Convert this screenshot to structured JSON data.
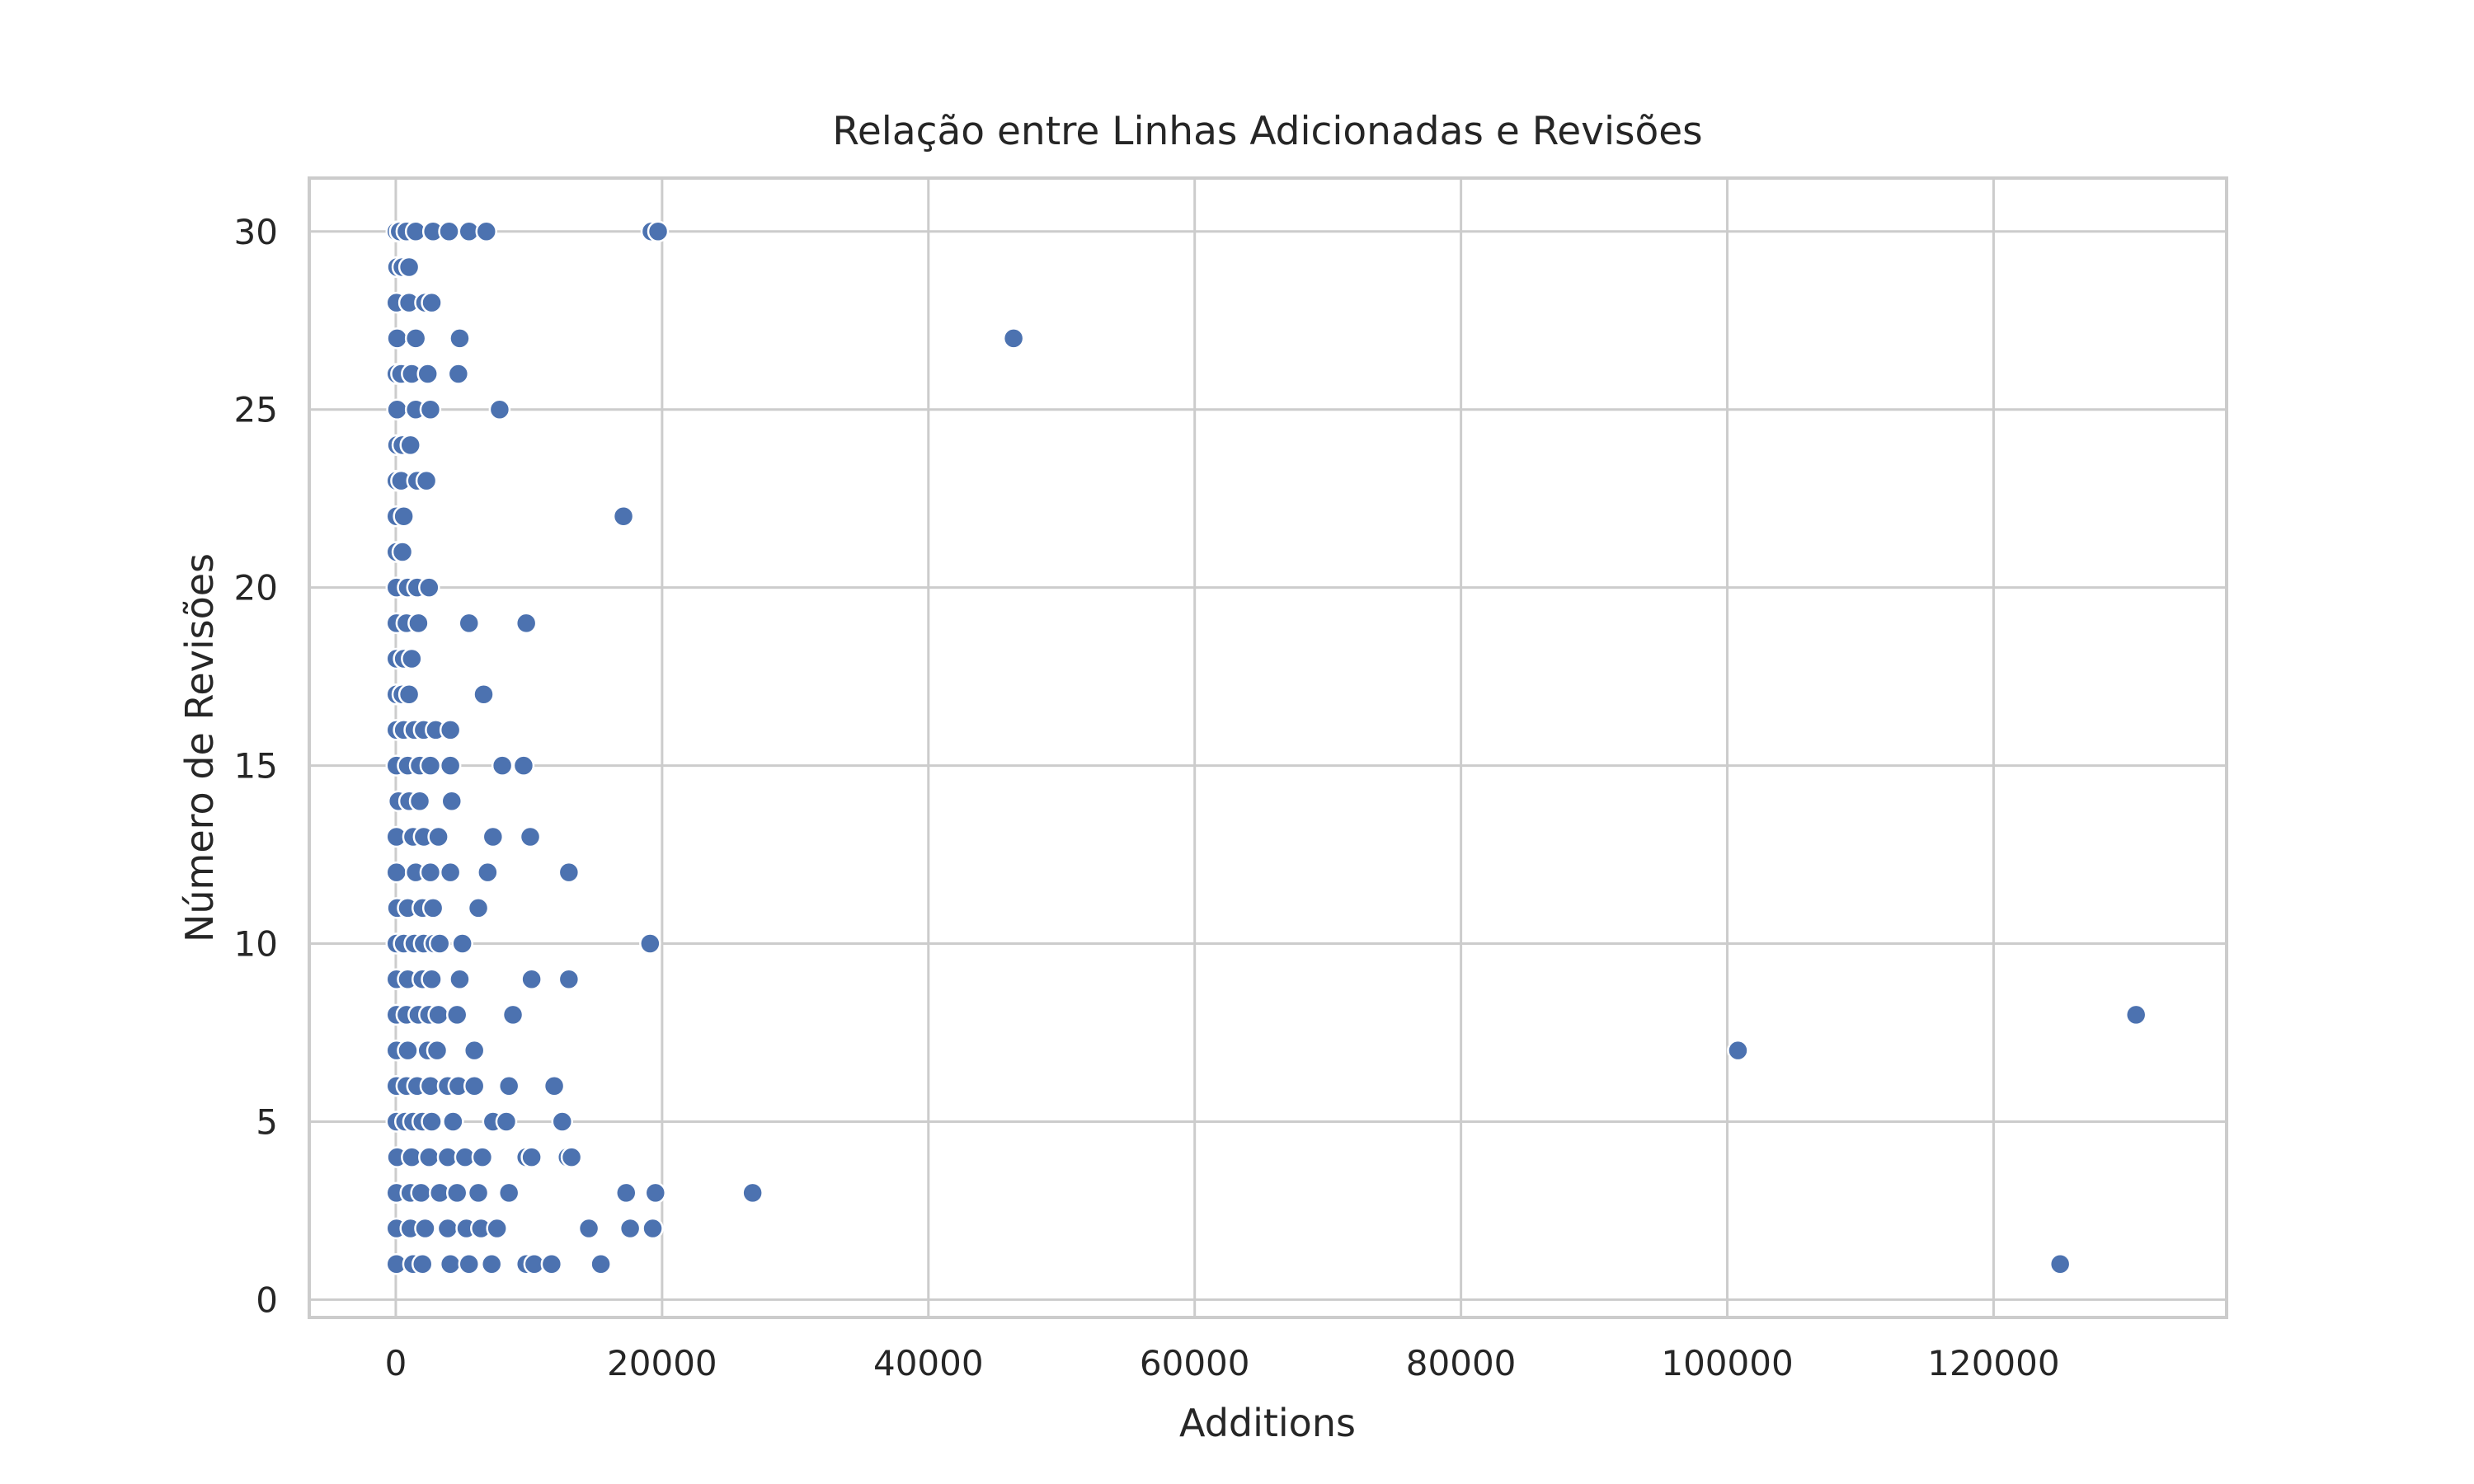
{
  "chart_data": {
    "type": "scatter",
    "title": "Relação entre Linhas Adicionadas e Revisões",
    "xlabel": "Additions",
    "ylabel": "Número de Revisões",
    "xlim": [
      -6500,
      137500
    ],
    "ylim": [
      -0.5,
      31.5
    ],
    "xticks": [
      0,
      20000,
      40000,
      60000,
      80000,
      100000,
      120000
    ],
    "xtick_labels": [
      "0",
      "20000",
      "40000",
      "60000",
      "80000",
      "100000",
      "120000"
    ],
    "yticks": [
      0,
      5,
      10,
      15,
      20,
      25,
      30
    ],
    "ytick_labels": [
      "0",
      "5",
      "10",
      "15",
      "20",
      "25",
      "30"
    ],
    "grid": true,
    "color": "#4c72b0",
    "points": [
      {
        "x": 50,
        "y": 30
      },
      {
        "x": 300,
        "y": 30
      },
      {
        "x": 800,
        "y": 30
      },
      {
        "x": 1500,
        "y": 30
      },
      {
        "x": 2800,
        "y": 30
      },
      {
        "x": 4000,
        "y": 30
      },
      {
        "x": 5500,
        "y": 30
      },
      {
        "x": 6800,
        "y": 30
      },
      {
        "x": 19200,
        "y": 30
      },
      {
        "x": 19700,
        "y": 30
      },
      {
        "x": 100,
        "y": 29
      },
      {
        "x": 500,
        "y": 29
      },
      {
        "x": 1000,
        "y": 29
      },
      {
        "x": 50,
        "y": 28
      },
      {
        "x": 1000,
        "y": 28
      },
      {
        "x": 2200,
        "y": 28
      },
      {
        "x": 2700,
        "y": 28
      },
      {
        "x": 100,
        "y": 27
      },
      {
        "x": 1500,
        "y": 27
      },
      {
        "x": 4800,
        "y": 27
      },
      {
        "x": 46400,
        "y": 27
      },
      {
        "x": 50,
        "y": 26
      },
      {
        "x": 400,
        "y": 26
      },
      {
        "x": 1200,
        "y": 26
      },
      {
        "x": 2400,
        "y": 26
      },
      {
        "x": 4700,
        "y": 26
      },
      {
        "x": 100,
        "y": 25
      },
      {
        "x": 1500,
        "y": 25
      },
      {
        "x": 2600,
        "y": 25
      },
      {
        "x": 7800,
        "y": 25
      },
      {
        "x": 100,
        "y": 24
      },
      {
        "x": 500,
        "y": 24
      },
      {
        "x": 1100,
        "y": 24
      },
      {
        "x": 50,
        "y": 23
      },
      {
        "x": 400,
        "y": 23
      },
      {
        "x": 1600,
        "y": 23
      },
      {
        "x": 2300,
        "y": 23
      },
      {
        "x": 50,
        "y": 22
      },
      {
        "x": 600,
        "y": 22
      },
      {
        "x": 17100,
        "y": 22
      },
      {
        "x": 50,
        "y": 21
      },
      {
        "x": 500,
        "y": 21
      },
      {
        "x": 50,
        "y": 20
      },
      {
        "x": 900,
        "y": 20
      },
      {
        "x": 1600,
        "y": 20
      },
      {
        "x": 2500,
        "y": 20
      },
      {
        "x": 50,
        "y": 19
      },
      {
        "x": 800,
        "y": 19
      },
      {
        "x": 1700,
        "y": 19
      },
      {
        "x": 5500,
        "y": 19
      },
      {
        "x": 9800,
        "y": 19
      },
      {
        "x": 50,
        "y": 18
      },
      {
        "x": 600,
        "y": 18
      },
      {
        "x": 1200,
        "y": 18
      },
      {
        "x": 50,
        "y": 17
      },
      {
        "x": 500,
        "y": 17
      },
      {
        "x": 1000,
        "y": 17
      },
      {
        "x": 6600,
        "y": 17
      },
      {
        "x": 50,
        "y": 16
      },
      {
        "x": 600,
        "y": 16
      },
      {
        "x": 1400,
        "y": 16
      },
      {
        "x": 2100,
        "y": 16
      },
      {
        "x": 3000,
        "y": 16
      },
      {
        "x": 4100,
        "y": 16
      },
      {
        "x": 50,
        "y": 15
      },
      {
        "x": 900,
        "y": 15
      },
      {
        "x": 1800,
        "y": 15
      },
      {
        "x": 2600,
        "y": 15
      },
      {
        "x": 4100,
        "y": 15
      },
      {
        "x": 8000,
        "y": 15
      },
      {
        "x": 9600,
        "y": 15
      },
      {
        "x": 200,
        "y": 14
      },
      {
        "x": 1000,
        "y": 14
      },
      {
        "x": 1800,
        "y": 14
      },
      {
        "x": 4200,
        "y": 14
      },
      {
        "x": 50,
        "y": 13
      },
      {
        "x": 1300,
        "y": 13
      },
      {
        "x": 2100,
        "y": 13
      },
      {
        "x": 3200,
        "y": 13
      },
      {
        "x": 7300,
        "y": 13
      },
      {
        "x": 10100,
        "y": 13
      },
      {
        "x": 50,
        "y": 12
      },
      {
        "x": 1500,
        "y": 12
      },
      {
        "x": 2600,
        "y": 12
      },
      {
        "x": 4100,
        "y": 12
      },
      {
        "x": 6900,
        "y": 12
      },
      {
        "x": 13000,
        "y": 12
      },
      {
        "x": 100,
        "y": 11
      },
      {
        "x": 900,
        "y": 11
      },
      {
        "x": 2000,
        "y": 11
      },
      {
        "x": 2800,
        "y": 11
      },
      {
        "x": 6200,
        "y": 11
      },
      {
        "x": 50,
        "y": 10
      },
      {
        "x": 600,
        "y": 10
      },
      {
        "x": 1400,
        "y": 10
      },
      {
        "x": 2100,
        "y": 10
      },
      {
        "x": 2900,
        "y": 10
      },
      {
        "x": 3300,
        "y": 10
      },
      {
        "x": 5000,
        "y": 10
      },
      {
        "x": 19100,
        "y": 10
      },
      {
        "x": 50,
        "y": 9
      },
      {
        "x": 900,
        "y": 9
      },
      {
        "x": 2000,
        "y": 9
      },
      {
        "x": 2700,
        "y": 9
      },
      {
        "x": 4800,
        "y": 9
      },
      {
        "x": 10200,
        "y": 9
      },
      {
        "x": 13000,
        "y": 9
      },
      {
        "x": 50,
        "y": 8
      },
      {
        "x": 800,
        "y": 8
      },
      {
        "x": 1700,
        "y": 8
      },
      {
        "x": 2500,
        "y": 8
      },
      {
        "x": 3200,
        "y": 8
      },
      {
        "x": 4600,
        "y": 8
      },
      {
        "x": 8800,
        "y": 8
      },
      {
        "x": 130700,
        "y": 8
      },
      {
        "x": 50,
        "y": 7
      },
      {
        "x": 900,
        "y": 7
      },
      {
        "x": 2400,
        "y": 7
      },
      {
        "x": 3100,
        "y": 7
      },
      {
        "x": 5900,
        "y": 7
      },
      {
        "x": 100800,
        "y": 7
      },
      {
        "x": 50,
        "y": 6
      },
      {
        "x": 800,
        "y": 6
      },
      {
        "x": 1600,
        "y": 6
      },
      {
        "x": 2600,
        "y": 6
      },
      {
        "x": 3900,
        "y": 6
      },
      {
        "x": 4700,
        "y": 6
      },
      {
        "x": 5900,
        "y": 6
      },
      {
        "x": 8500,
        "y": 6
      },
      {
        "x": 11900,
        "y": 6
      },
      {
        "x": 50,
        "y": 5
      },
      {
        "x": 700,
        "y": 5
      },
      {
        "x": 1300,
        "y": 5
      },
      {
        "x": 2000,
        "y": 5
      },
      {
        "x": 2700,
        "y": 5
      },
      {
        "x": 4300,
        "y": 5
      },
      {
        "x": 7300,
        "y": 5
      },
      {
        "x": 8300,
        "y": 5
      },
      {
        "x": 12500,
        "y": 5
      },
      {
        "x": 100,
        "y": 4
      },
      {
        "x": 1200,
        "y": 4
      },
      {
        "x": 2500,
        "y": 4
      },
      {
        "x": 3900,
        "y": 4
      },
      {
        "x": 5200,
        "y": 4
      },
      {
        "x": 6500,
        "y": 4
      },
      {
        "x": 9800,
        "y": 4
      },
      {
        "x": 10200,
        "y": 4
      },
      {
        "x": 12900,
        "y": 4
      },
      {
        "x": 13200,
        "y": 4
      },
      {
        "x": 50,
        "y": 3
      },
      {
        "x": 1100,
        "y": 3
      },
      {
        "x": 1900,
        "y": 3
      },
      {
        "x": 3300,
        "y": 3
      },
      {
        "x": 4600,
        "y": 3
      },
      {
        "x": 6200,
        "y": 3
      },
      {
        "x": 8500,
        "y": 3
      },
      {
        "x": 17300,
        "y": 3
      },
      {
        "x": 19500,
        "y": 3
      },
      {
        "x": 26800,
        "y": 3
      },
      {
        "x": 50,
        "y": 2
      },
      {
        "x": 1100,
        "y": 2
      },
      {
        "x": 2200,
        "y": 2
      },
      {
        "x": 3900,
        "y": 2
      },
      {
        "x": 5300,
        "y": 2
      },
      {
        "x": 6400,
        "y": 2
      },
      {
        "x": 7600,
        "y": 2
      },
      {
        "x": 14500,
        "y": 2
      },
      {
        "x": 17600,
        "y": 2
      },
      {
        "x": 19300,
        "y": 2
      },
      {
        "x": 50,
        "y": 1
      },
      {
        "x": 1300,
        "y": 1
      },
      {
        "x": 2000,
        "y": 1
      },
      {
        "x": 4100,
        "y": 1
      },
      {
        "x": 5500,
        "y": 1
      },
      {
        "x": 7200,
        "y": 1
      },
      {
        "x": 9800,
        "y": 1
      },
      {
        "x": 10400,
        "y": 1
      },
      {
        "x": 11700,
        "y": 1
      },
      {
        "x": 15400,
        "y": 1
      },
      {
        "x": 125000,
        "y": 1
      }
    ]
  }
}
